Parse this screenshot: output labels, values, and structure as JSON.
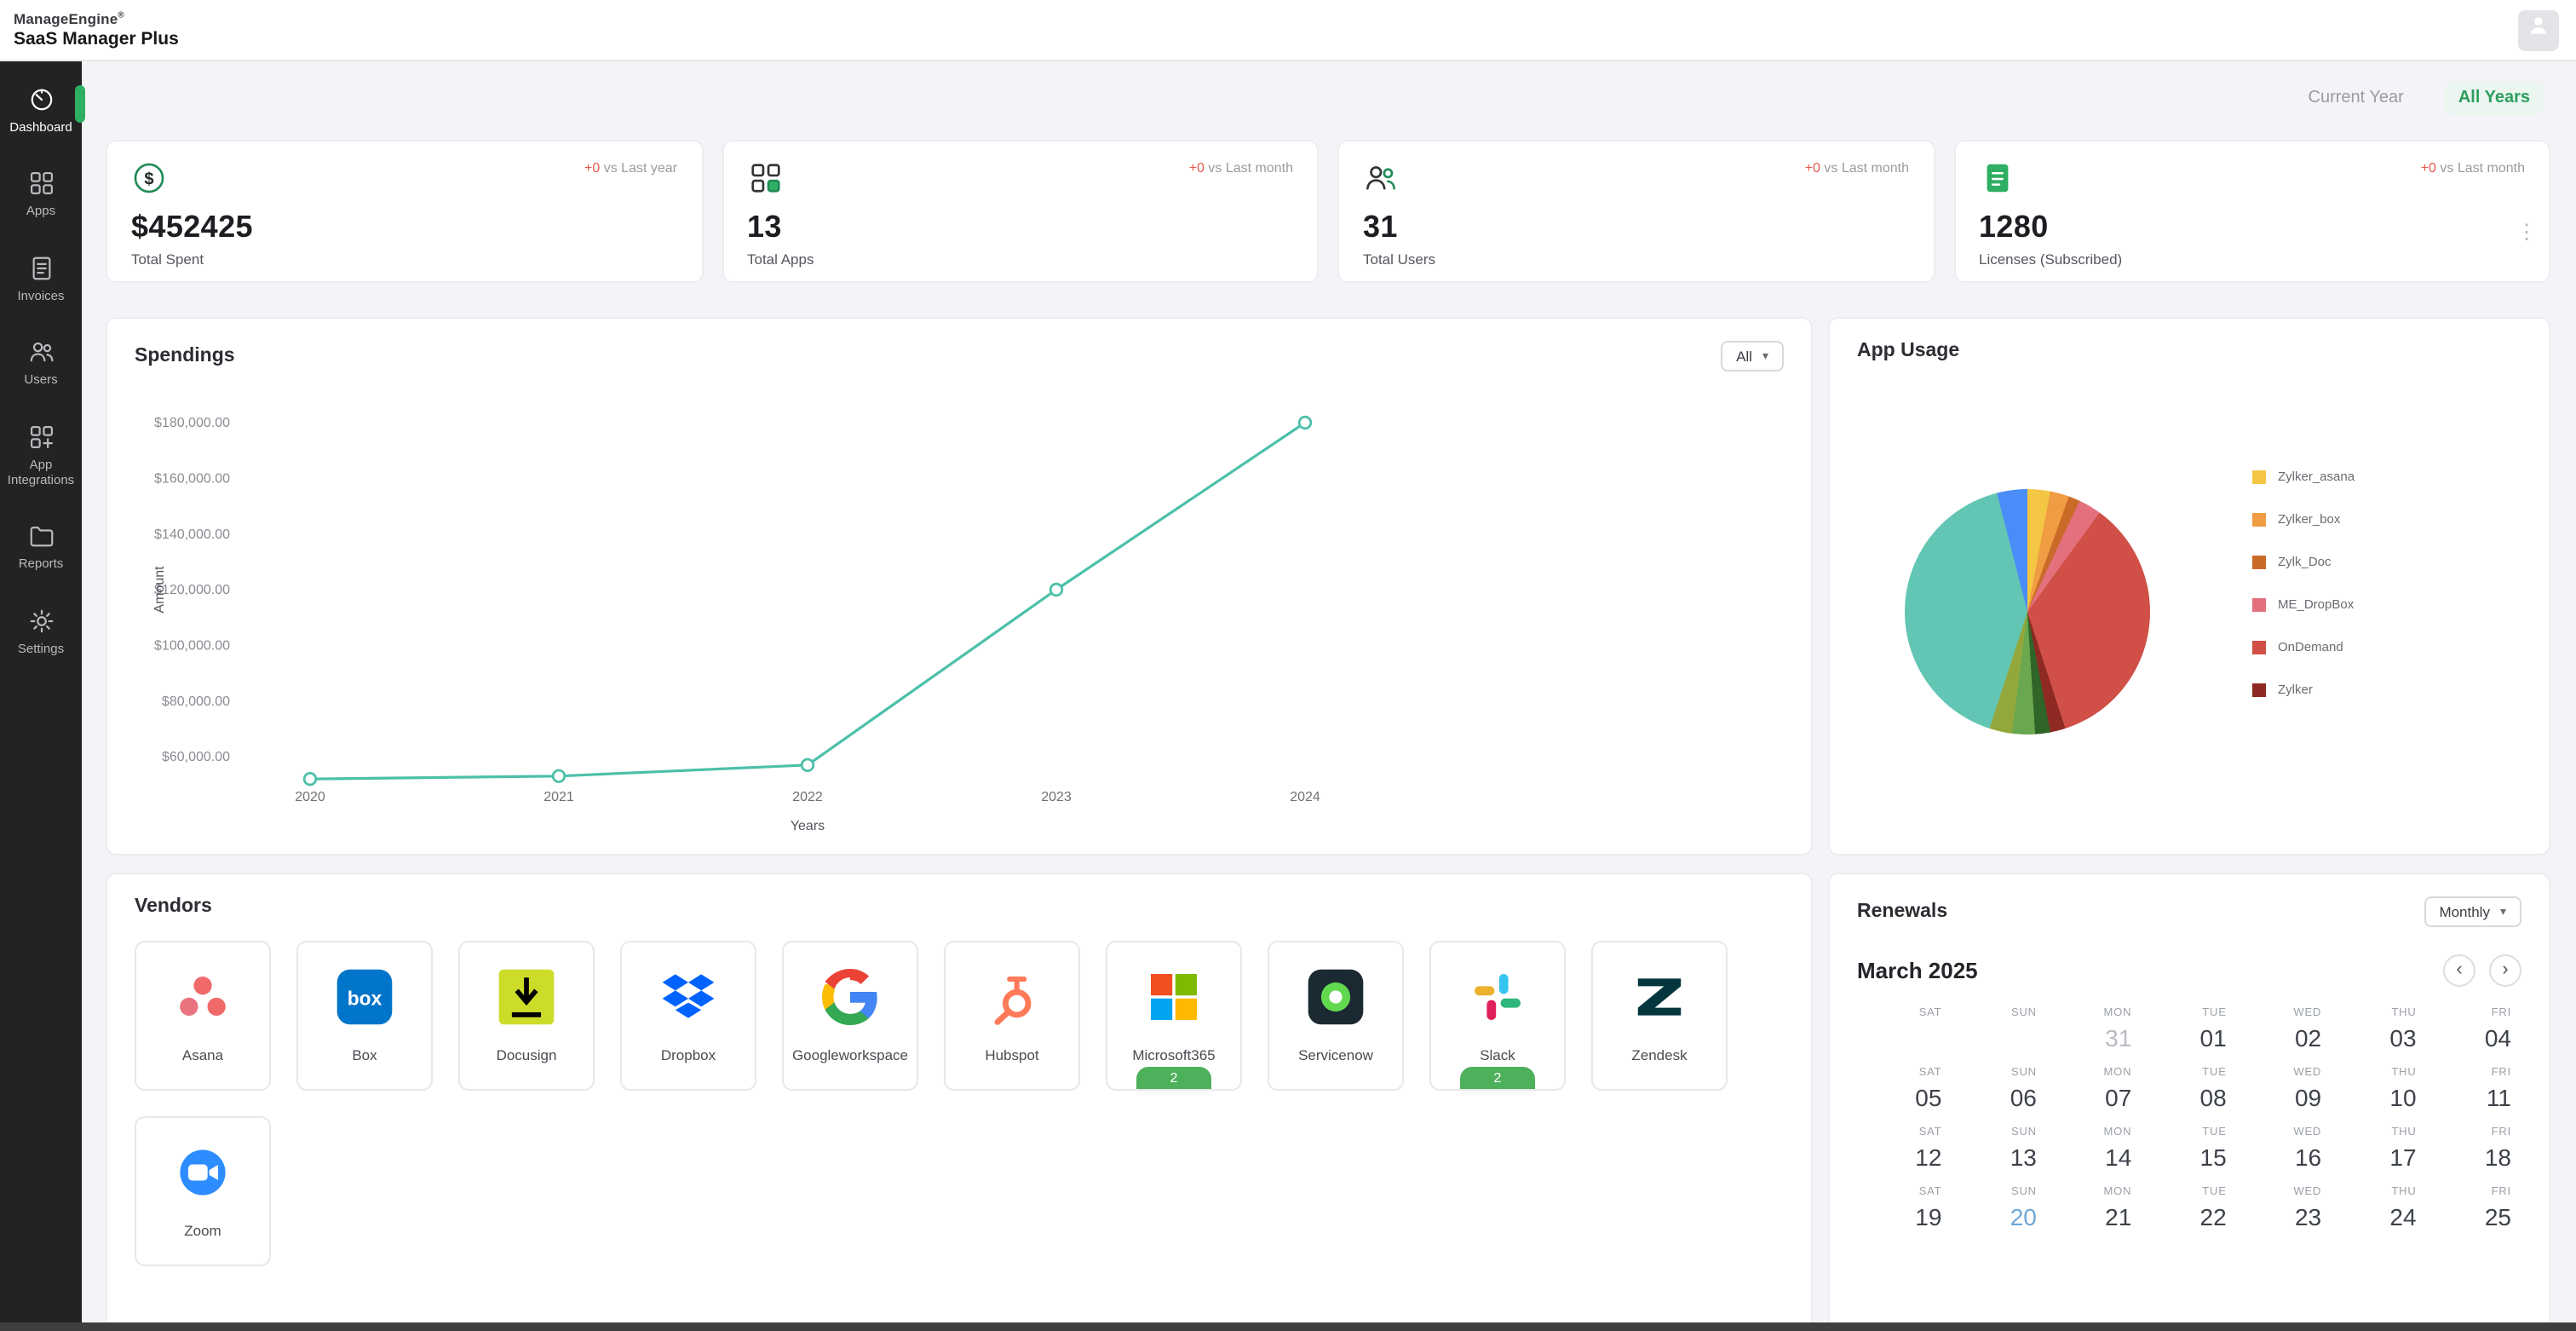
{
  "header": {
    "brand_line1": "ManageEngine",
    "brand_reg": "®",
    "brand_line2": "SaaS Manager Plus"
  },
  "icons": {
    "caret_down": "▾",
    "chevron_left": "‹",
    "chevron_right": "›",
    "kebab": "⋮"
  },
  "sidebar": {
    "items": [
      {
        "id": "dashboard",
        "label": "Dashboard",
        "active": true
      },
      {
        "id": "apps",
        "label": "Apps",
        "active": false
      },
      {
        "id": "invoices",
        "label": "Invoices",
        "active": false
      },
      {
        "id": "users",
        "label": "Users",
        "active": false
      },
      {
        "id": "app-integrations",
        "label": "App Integrations",
        "active": false
      },
      {
        "id": "reports",
        "label": "Reports",
        "active": false
      },
      {
        "id": "settings",
        "label": "Settings",
        "active": false
      }
    ]
  },
  "tabs": {
    "current_year": "Current Year",
    "all_years": "All Years"
  },
  "stats": [
    {
      "id": "total-spent",
      "icon": "dollar-icon",
      "delta": "+0",
      "delta_note": "vs Last year",
      "value": "$452425",
      "label": "Total Spent",
      "menu": false
    },
    {
      "id": "total-apps",
      "icon": "apps-grid-icon",
      "delta": "+0",
      "delta_note": "vs Last month",
      "value": "13",
      "label": "Total Apps",
      "menu": false
    },
    {
      "id": "total-users",
      "icon": "users-icon",
      "delta": "+0",
      "delta_note": "vs Last month",
      "value": "31",
      "label": "Total Users",
      "menu": false
    },
    {
      "id": "licenses",
      "icon": "license-icon",
      "delta": "+0",
      "delta_note": "vs Last month",
      "value": "1280",
      "label": "Licenses (Subscribed)",
      "menu": true
    }
  ],
  "spendings": {
    "title": "Spendings",
    "filter_value": "All"
  },
  "app_usage": {
    "title": "App Usage"
  },
  "vendors": {
    "title": "Vendors",
    "items": [
      {
        "id": "asana",
        "name": "Asana"
      },
      {
        "id": "box",
        "name": "Box"
      },
      {
        "id": "docusign",
        "name": "Docusign"
      },
      {
        "id": "dropbox",
        "name": "Dropbox"
      },
      {
        "id": "googleworkspace",
        "name": "Googleworkspace"
      },
      {
        "id": "hubspot",
        "name": "Hubspot"
      },
      {
        "id": "microsoft365",
        "name": "Microsoft365",
        "badge": "2"
      },
      {
        "id": "servicenow",
        "name": "Servicenow"
      },
      {
        "id": "slack",
        "name": "Slack",
        "badge": "2"
      },
      {
        "id": "zendesk",
        "name": "Zendesk"
      },
      {
        "id": "zoom",
        "name": "Zoom"
      }
    ]
  },
  "renewals": {
    "title": "Renewals",
    "filter_value": "Monthly",
    "month_label": "March 2025",
    "weeks": [
      [
        {
          "dow": "SAT",
          "day": ""
        },
        {
          "dow": "SUN",
          "day": ""
        },
        {
          "dow": "MON",
          "day": "31",
          "muted": true
        },
        {
          "dow": "TUE",
          "day": "01"
        },
        {
          "dow": "WED",
          "day": "02"
        },
        {
          "dow": "THU",
          "day": "03"
        },
        {
          "dow": "FRI",
          "day": "04"
        }
      ],
      [
        {
          "dow": "SAT",
          "day": "05"
        },
        {
          "dow": "SUN",
          "day": "06"
        },
        {
          "dow": "MON",
          "day": "07"
        },
        {
          "dow": "TUE",
          "day": "08"
        },
        {
          "dow": "WED",
          "day": "09"
        },
        {
          "dow": "THU",
          "day": "10"
        },
        {
          "dow": "FRI",
          "day": "11"
        }
      ],
      [
        {
          "dow": "SAT",
          "day": "12"
        },
        {
          "dow": "SUN",
          "day": "13"
        },
        {
          "dow": "MON",
          "day": "14"
        },
        {
          "dow": "TUE",
          "day": "15"
        },
        {
          "dow": "WED",
          "day": "16"
        },
        {
          "dow": "THU",
          "day": "17"
        },
        {
          "dow": "FRI",
          "day": "18"
        }
      ],
      [
        {
          "dow": "SAT",
          "day": "19"
        },
        {
          "dow": "SUN",
          "day": "20",
          "accent": true
        },
        {
          "dow": "MON",
          "day": "21"
        },
        {
          "dow": "TUE",
          "day": "22"
        },
        {
          "dow": "WED",
          "day": "23"
        },
        {
          "dow": "THU",
          "day": "24"
        },
        {
          "dow": "FRI",
          "day": "25"
        }
      ]
    ]
  },
  "chart_data": [
    {
      "type": "line",
      "title": "Spendings",
      "x": [
        "2020",
        "2021",
        "2022",
        "2023",
        "2024"
      ],
      "values": [
        52000,
        53000,
        57000,
        120000,
        180000
      ],
      "xlabel": "Years",
      "ylabel": "Amount",
      "yticks": [
        {
          "label": "$60,000.00",
          "value": 60000
        },
        {
          "label": "$80,000.00",
          "value": 80000
        },
        {
          "label": "$100,000.00",
          "value": 100000
        },
        {
          "label": "$120,000.00",
          "value": 120000
        },
        {
          "label": "$140,000.00",
          "value": 140000
        },
        {
          "label": "$160,000.00",
          "value": 160000
        },
        {
          "label": "$180,000.00",
          "value": 180000
        }
      ],
      "ylim": [
        45000,
        187000
      ],
      "line_color": "#4cc0a9",
      "grid": false,
      "legend_position": "none"
    },
    {
      "type": "pie",
      "title": "App Usage",
      "legend_position": "right",
      "slices": [
        {
          "name": "Zylker_asana",
          "color": "#f3c643",
          "value": 3
        },
        {
          "name": "Zylker_box",
          "color": "#f09c42",
          "value": 2.5
        },
        {
          "name": "Zylk_Doc",
          "color": "#c96a28",
          "value": 1.5
        },
        {
          "name": "ME_DropBox",
          "color": "#e4707e",
          "value": 3
        },
        {
          "name": "OnDemand",
          "color": "#d04f46",
          "value": 35
        },
        {
          "name": "Zylker",
          "color": "#8e2a23",
          "value": 2
        },
        {
          "name": "",
          "color": "#2f6627",
          "value": 2
        },
        {
          "name": "",
          "color": "#6aa84f",
          "value": 3
        },
        {
          "name": "",
          "color": "#93a83c",
          "value": 3
        },
        {
          "name": "",
          "color": "#63c6b4",
          "value": 41
        },
        {
          "name": "",
          "color": "#4b8df8",
          "value": 4
        }
      ]
    }
  ]
}
